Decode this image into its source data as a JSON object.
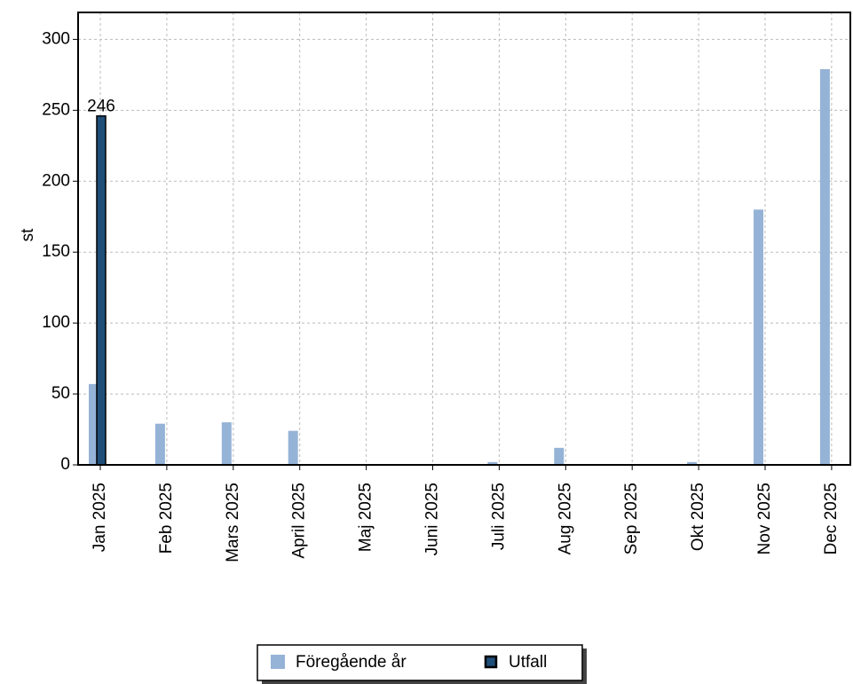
{
  "chart_data": {
    "type": "bar",
    "y_label": "st",
    "categories": [
      "Jan 2025",
      "Feb 2025",
      "Mars 2025",
      "April 2025",
      "Maj 2025",
      "Juni 2025",
      "Juli 2025",
      "Aug 2025",
      "Sep 2025",
      "Okt 2025",
      "Nov 2025",
      "Dec 2025"
    ],
    "series": [
      {
        "name": "Föregående år",
        "color": "#95b3d7",
        "values": [
          57,
          29,
          30,
          24,
          0,
          0,
          2,
          12,
          0,
          2,
          180,
          279
        ]
      },
      {
        "name": "Utfall",
        "color": "#1f4e79",
        "values": [
          246,
          null,
          null,
          null,
          null,
          null,
          null,
          null,
          null,
          null,
          null,
          null
        ]
      }
    ],
    "ylim": [
      0,
      319
    ],
    "yticks": [
      0,
      50,
      100,
      150,
      200,
      250,
      300
    ],
    "grid": true
  }
}
